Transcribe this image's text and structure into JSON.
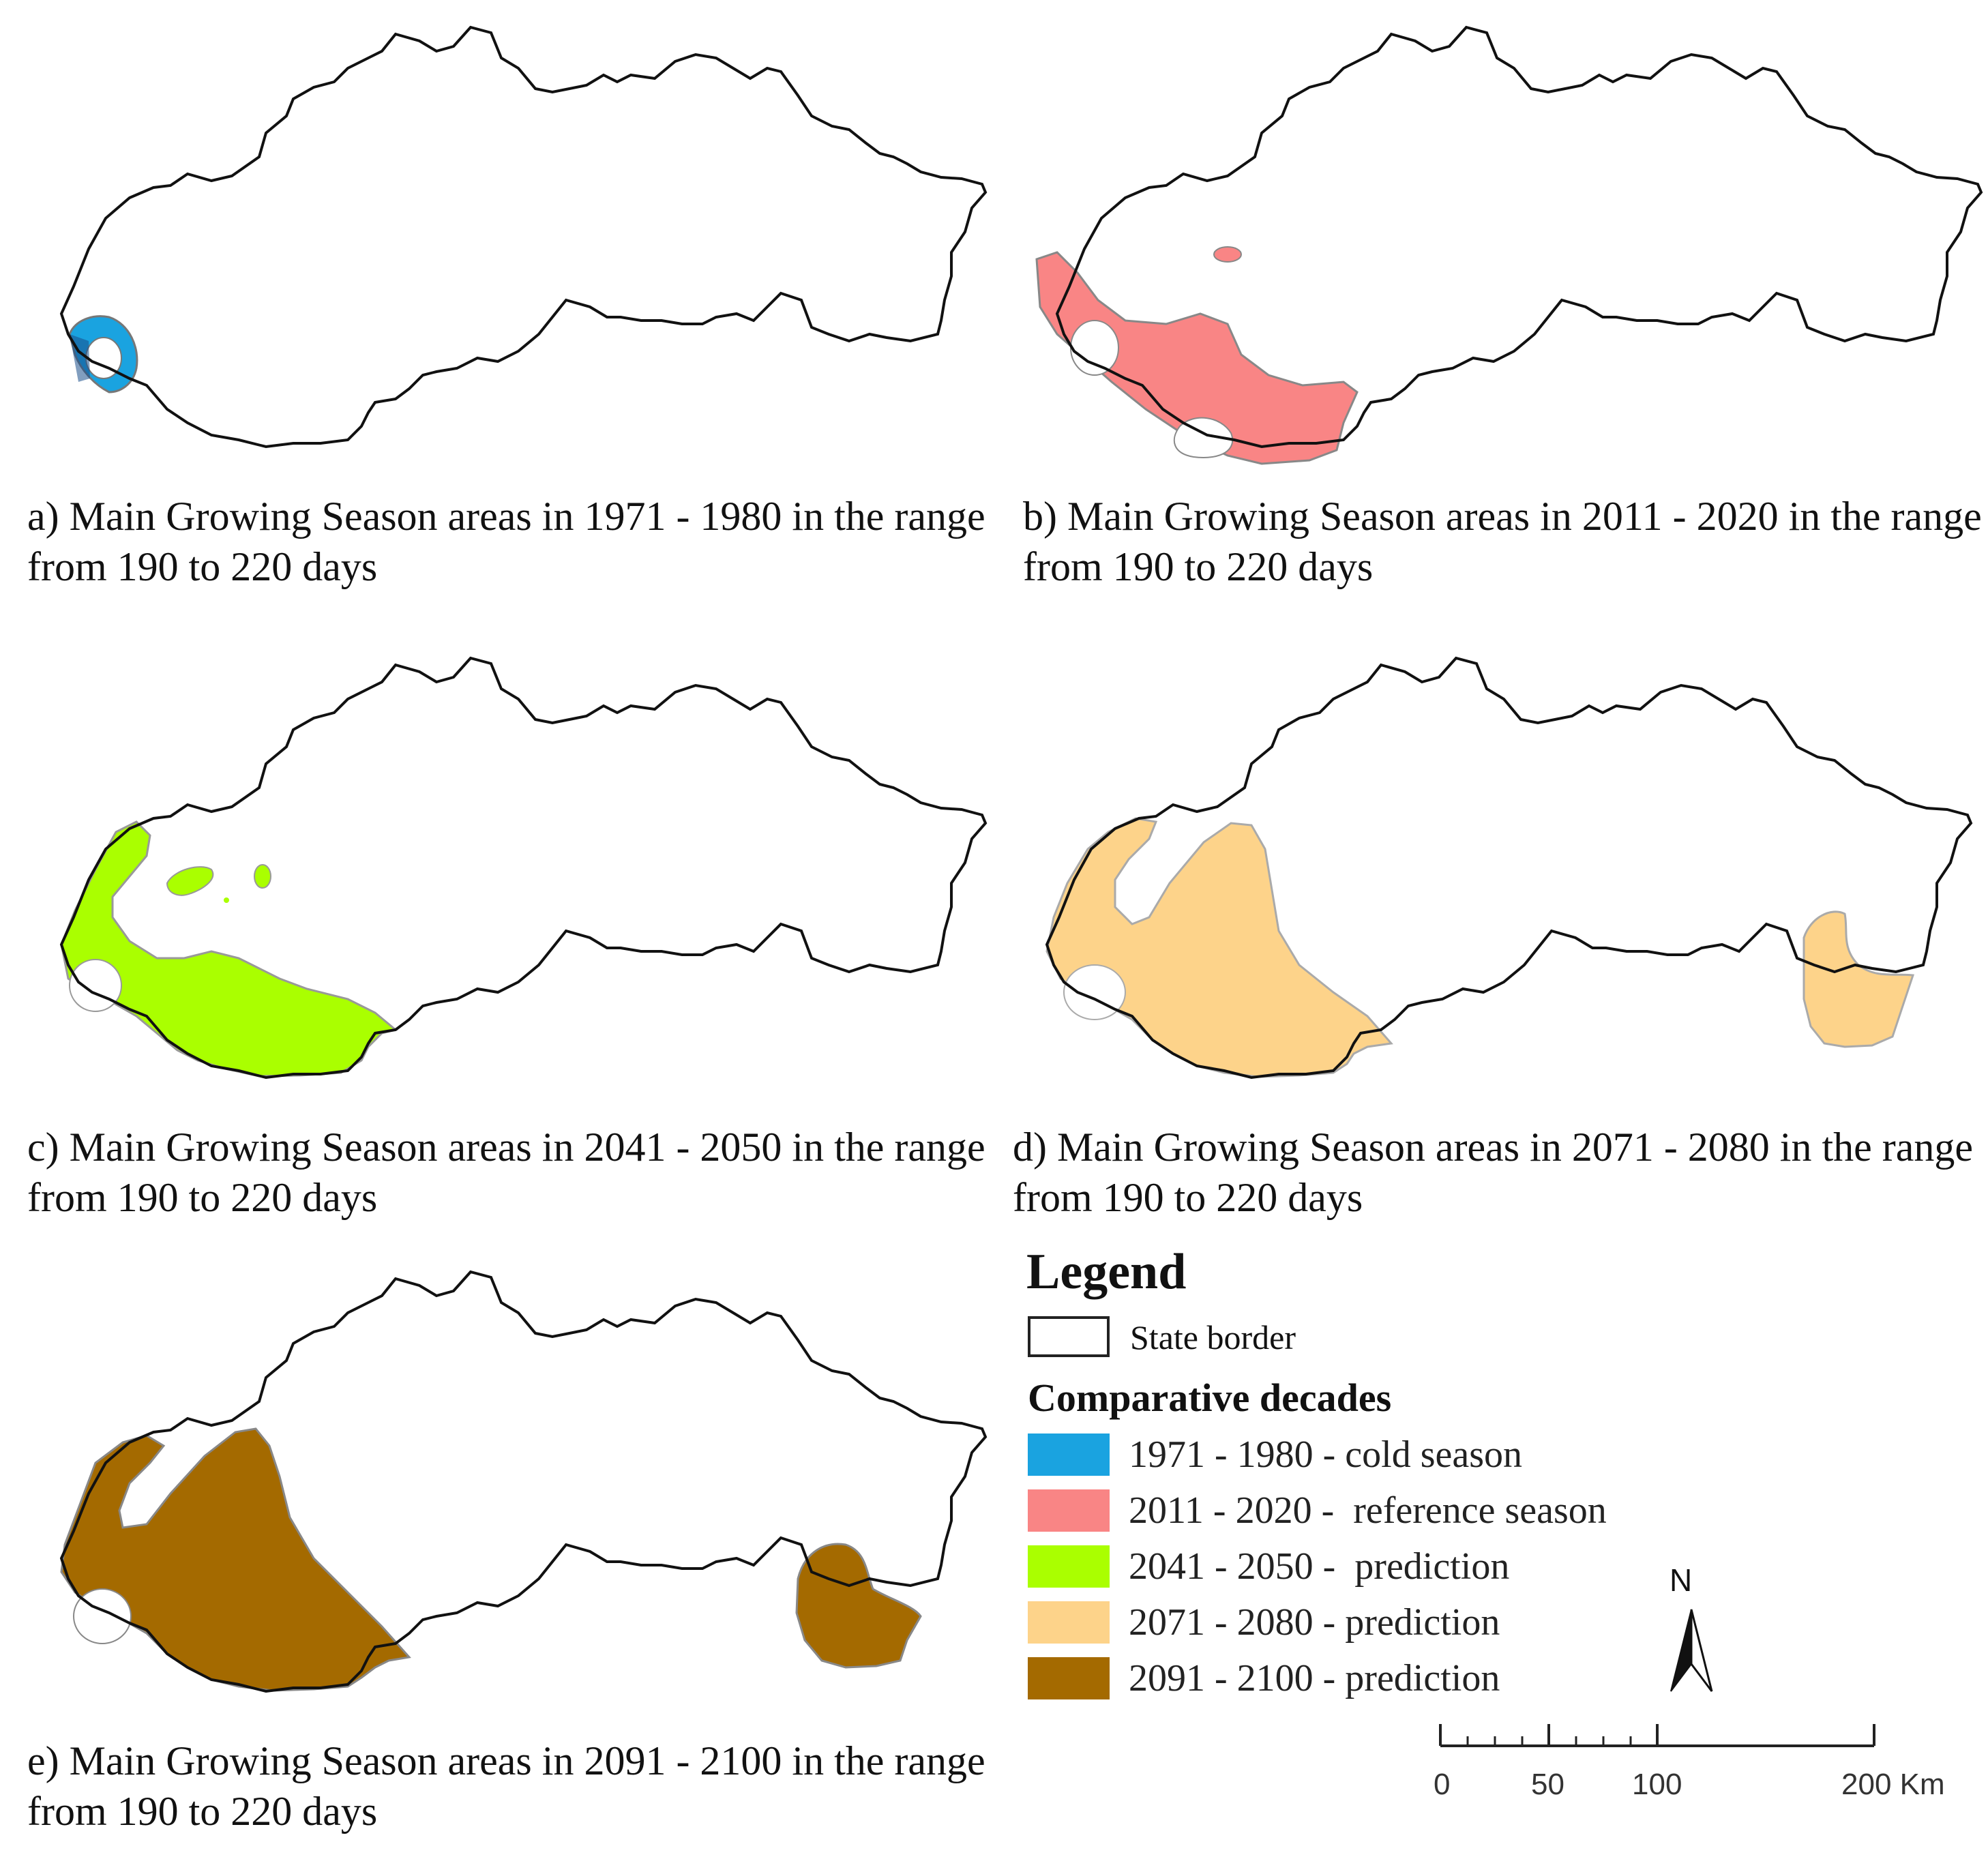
{
  "panels": [
    {
      "id": "a",
      "caption_line1": "a) Main Growing Season areas in 1971 - 1980 in the range",
      "caption_line2": "from  190 to 220 days",
      "fill": "#1aa3e0"
    },
    {
      "id": "b",
      "caption_line1": "b) Main Growing Season areas in 2011 - 2020 in the range",
      "caption_line2": "from 190 to 220 days",
      "fill": "#f98585"
    },
    {
      "id": "c",
      "caption_line1": "c) Main Growing Season areas in 2041 - 2050 in the range",
      "caption_line2": "from 190 to 220 days",
      "fill": "#aaff00"
    },
    {
      "id": "d",
      "caption_line1": "d) Main Growing Season areas in 2071 - 2080 in the range",
      "caption_line2": "from  190 to 220 days",
      "fill": "#fdd38a"
    },
    {
      "id": "e",
      "caption_line1": "e) Main Growing Season areas in 2091 - 2100 in the range",
      "caption_line2": "from 190 to 220 days",
      "fill": "#a46a00"
    }
  ],
  "legend": {
    "title": "Legend",
    "state_border_label": "State border",
    "subtitle": "Comparative decades",
    "items": [
      {
        "label": "1971 - 1980 - cold season",
        "color": "#1aa3e0"
      },
      {
        "label": "2011 - 2020 -  reference season",
        "color": "#f98585"
      },
      {
        "label": "2041 - 2050 -  prediction",
        "color": "#aaff00"
      },
      {
        "label": "2071 - 2080 - prediction",
        "color": "#fdd38a"
      },
      {
        "label": "2091 - 2100 - prediction",
        "color": "#a46a00"
      }
    ]
  },
  "north_arrow": {
    "label": "N",
    "icon": "north-arrow-icon"
  },
  "scale_bar": {
    "ticks": [
      "0",
      "50",
      "100",
      "200 Km"
    ]
  }
}
